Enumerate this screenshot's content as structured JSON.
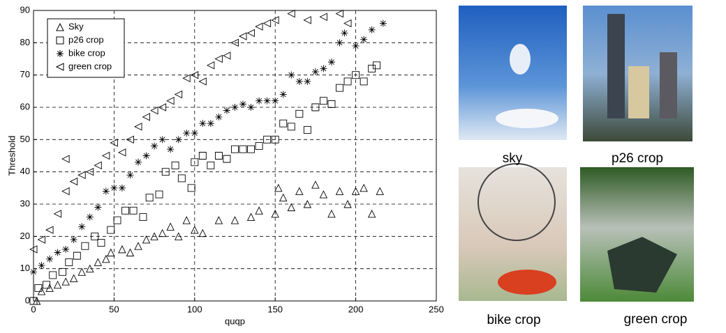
{
  "chart_data": {
    "type": "scatter",
    "xlabel": "quqp",
    "ylabel": "Threshold",
    "xlim": [
      0,
      250
    ],
    "ylim": [
      0,
      90
    ],
    "xticks": [
      0,
      50,
      100,
      150,
      200,
      250
    ],
    "yticks": [
      0,
      10,
      20,
      30,
      40,
      50,
      60,
      70,
      80,
      90
    ],
    "grid": true,
    "legend": "upper left",
    "series": [
      {
        "name": "Sky",
        "marker": "triangle-up",
        "color": "#000000",
        "x": [
          2,
          5,
          10,
          15,
          20,
          25,
          30,
          35,
          40,
          45,
          48,
          55,
          60,
          65,
          70,
          75,
          80,
          85,
          90,
          95,
          100,
          105,
          115,
          125,
          135,
          140,
          150,
          152,
          155,
          160,
          165,
          170,
          175,
          180,
          185,
          190,
          195,
          200,
          205,
          210,
          215
        ],
        "values": [
          0,
          3,
          4,
          5,
          6,
          7,
          9,
          10,
          12,
          13,
          15,
          16,
          15,
          17,
          19,
          20,
          21,
          23,
          20,
          25,
          22,
          21,
          25,
          25,
          26,
          28,
          27,
          35,
          32,
          29,
          34,
          30,
          36,
          33,
          27,
          34,
          30,
          34,
          35,
          27,
          34
        ]
      },
      {
        "name": "p26 crop",
        "marker": "square",
        "color": "#000000",
        "x": [
          0,
          3,
          8,
          12,
          18,
          22,
          27,
          32,
          38,
          42,
          48,
          52,
          57,
          62,
          68,
          72,
          78,
          82,
          88,
          92,
          98,
          100,
          105,
          110,
          115,
          120,
          125,
          130,
          135,
          140,
          145,
          150,
          155,
          160,
          165,
          170,
          175,
          180,
          185,
          190,
          195,
          200,
          205,
          210,
          213
        ],
        "values": [
          0,
          4,
          5,
          8,
          9,
          12,
          14,
          17,
          20,
          18,
          22,
          25,
          28,
          28,
          26,
          32,
          33,
          40,
          42,
          38,
          35,
          43,
          45,
          42,
          45,
          44,
          47,
          47,
          47,
          48,
          50,
          50,
          55,
          54,
          58,
          53,
          60,
          62,
          61,
          66,
          68,
          70,
          68,
          72,
          73
        ]
      },
      {
        "name": "bike crop",
        "marker": "asterisk",
        "color": "#000000",
        "x": [
          0,
          5,
          10,
          15,
          20,
          25,
          30,
          35,
          40,
          45,
          50,
          55,
          60,
          65,
          70,
          75,
          80,
          85,
          90,
          95,
          100,
          105,
          110,
          115,
          120,
          125,
          130,
          135,
          140,
          145,
          150,
          155,
          160,
          165,
          170,
          175,
          180,
          185,
          190,
          193,
          200,
          205,
          210,
          217
        ],
        "values": [
          9,
          11,
          13,
          15,
          16,
          19,
          23,
          26,
          29,
          34,
          35,
          35,
          39,
          43,
          45,
          48,
          50,
          47,
          50,
          52,
          52,
          55,
          55,
          57,
          59,
          60,
          61,
          60,
          62,
          62,
          62,
          64,
          70,
          68,
          68,
          71,
          72,
          74,
          80,
          83,
          79,
          81,
          84,
          86
        ]
      },
      {
        "name": "green crop",
        "marker": "triangle-left",
        "color": "#000000",
        "x": [
          0,
          5,
          10,
          15,
          20,
          20,
          25,
          30,
          35,
          40,
          45,
          50,
          55,
          60,
          65,
          70,
          75,
          80,
          85,
          90,
          95,
          100,
          105,
          110,
          115,
          120,
          125,
          130,
          135,
          140,
          145,
          150,
          160,
          170,
          180,
          190,
          195
        ],
        "values": [
          16,
          19,
          22,
          27,
          34,
          44,
          37,
          39,
          40,
          42,
          45,
          49,
          46,
          50,
          54,
          57,
          59,
          60,
          62,
          64,
          69,
          70,
          68,
          73,
          75,
          76,
          80,
          82,
          83,
          85,
          86,
          87,
          89,
          87,
          88,
          89,
          86
        ]
      }
    ]
  },
  "panels": [
    {
      "caption": "sky"
    },
    {
      "caption": "p26 crop"
    },
    {
      "caption": "bike crop"
    },
    {
      "caption": "green crop"
    }
  ]
}
